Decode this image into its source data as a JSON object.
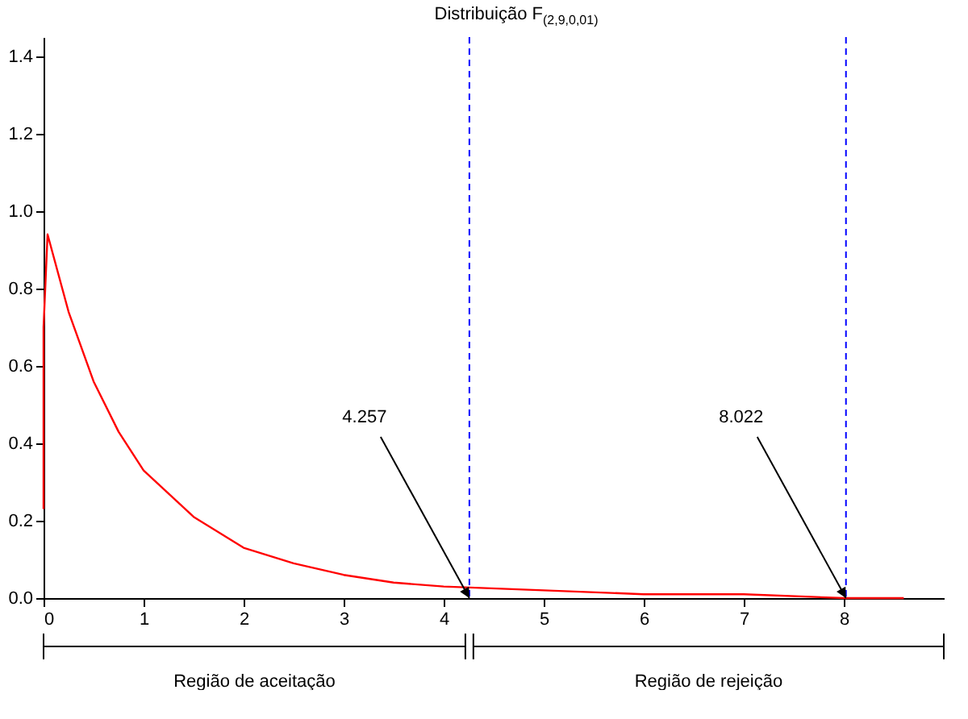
{
  "chart_data": {
    "type": "line",
    "title": "Distribuição F$_{(2,9,0,01)}$",
    "x": [
      0,
      0,
      0.04,
      0.25,
      0.5,
      0.75,
      1,
      1.5,
      2,
      2.5,
      3,
      3.5,
      4,
      5,
      6,
      7,
      8,
      8.6
    ],
    "series": [
      {
        "color": "#ff0000",
        "values": [
          0.23,
          0.7,
          0.94,
          0.74,
          0.56,
          0.43,
          0.33,
          0.21,
          0.13,
          0.09,
          0.06,
          0.04,
          0.03,
          0.02,
          0.01,
          0.01,
          0.0,
          0.0
        ]
      }
    ],
    "xlim": [
      0,
      9
    ],
    "xticks": [
      0,
      1,
      2,
      3,
      4,
      5,
      6,
      7,
      8
    ],
    "ylim": [
      0,
      1.45
    ],
    "yticks": [
      {
        "value": 0,
        "label": "0.0"
      },
      0.2,
      0.4,
      0.6,
      0.8,
      {
        "value": 1,
        "label": "1.0"
      },
      1.2,
      1.4
    ],
    "ref_lines": [
      {
        "axis": "x",
        "value": 4.257,
        "label": "4.257",
        "color": "#0000ff",
        "line_style": "dashed"
      },
      {
        "axis": "x",
        "value": 8.022,
        "label": "8.022",
        "color": "#0000ff",
        "line_style": "dashed"
      }
    ],
    "annotations": [
      "Região de aceitação",
      "Região de rejeição"
    ],
    "grid": false,
    "marker": "none",
    "line_style": "solid"
  }
}
